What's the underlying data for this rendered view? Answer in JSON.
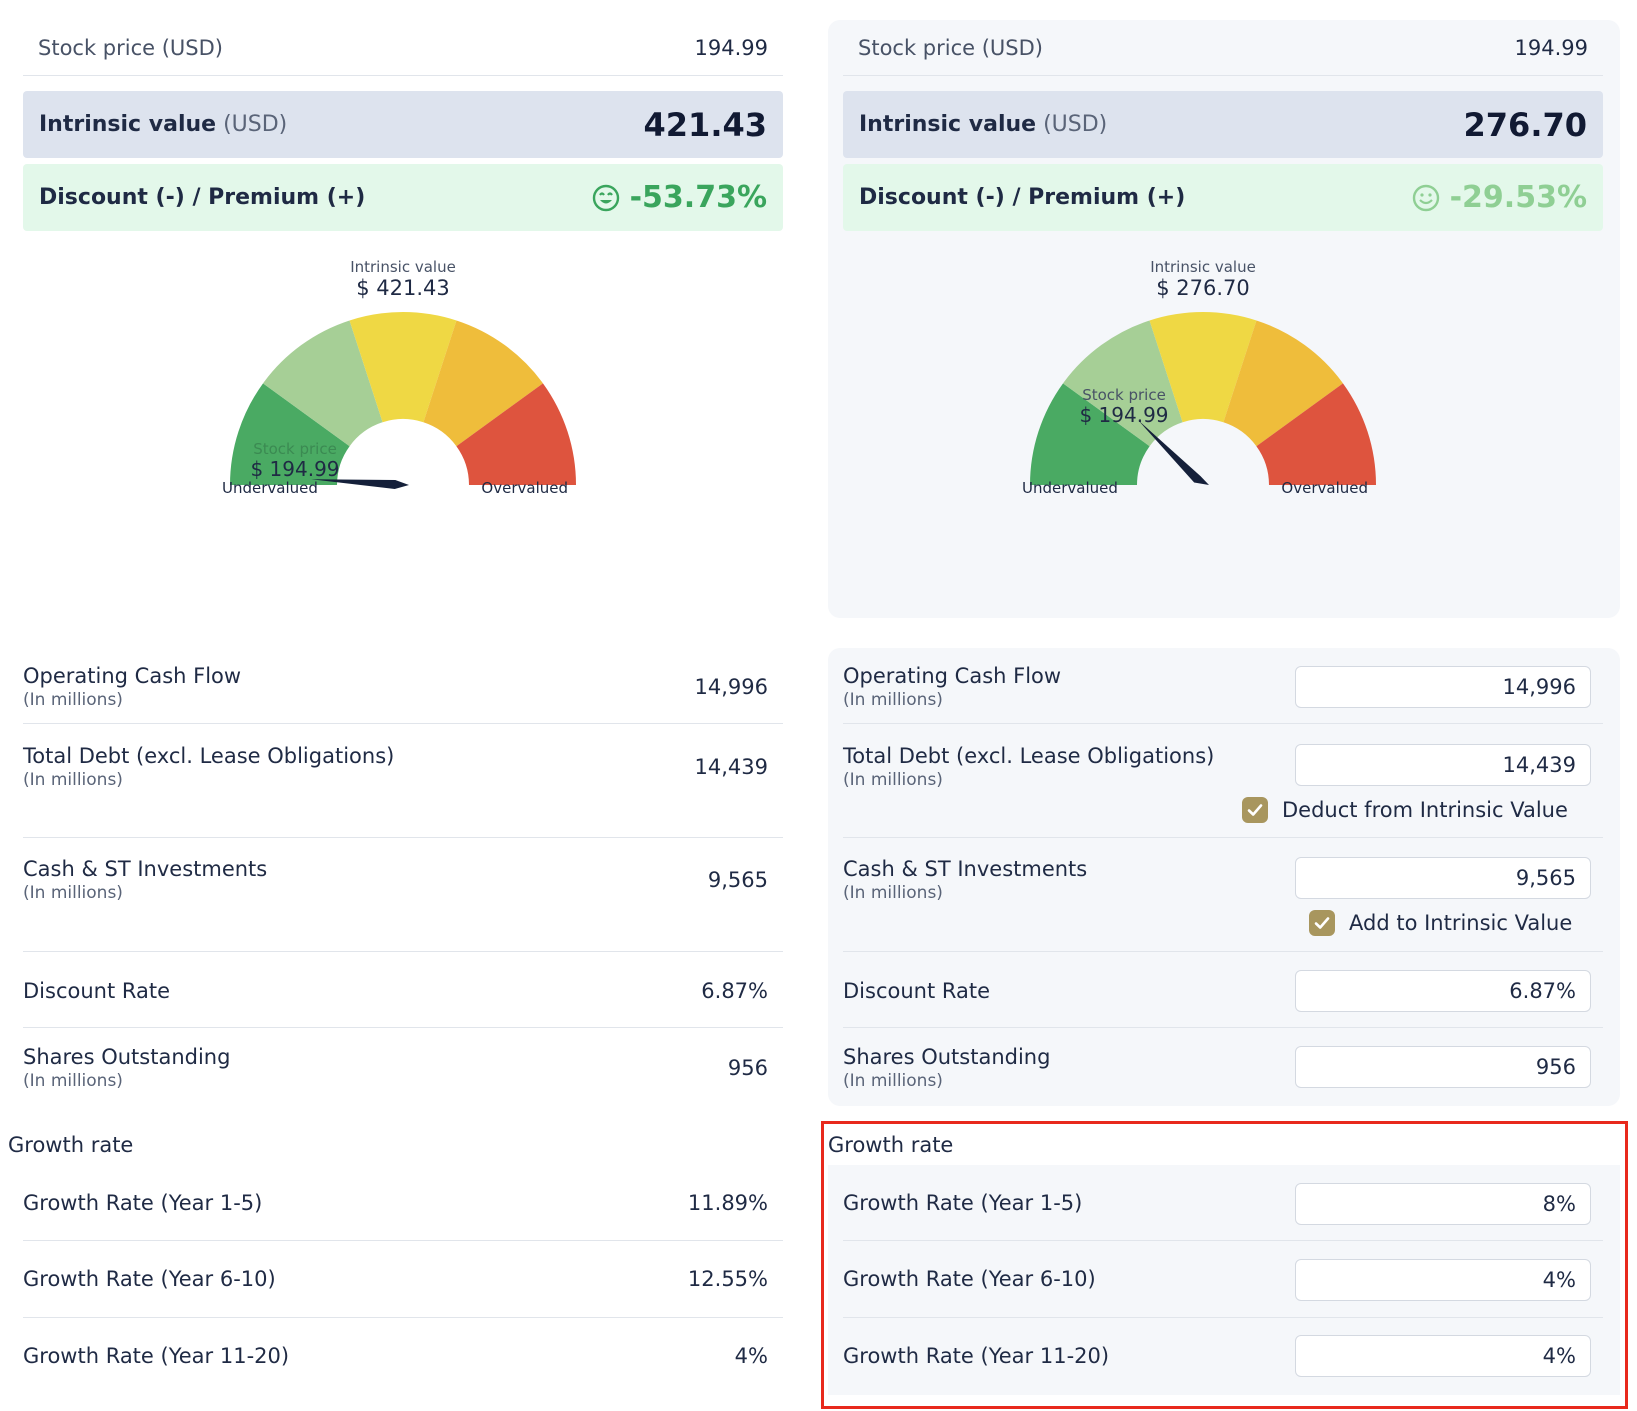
{
  "left": {
    "stock_price_label": "Stock price (USD)",
    "stock_price_value": "194.99",
    "iv_label_bold": "Intrinsic value",
    "iv_label_unit": "(USD)",
    "iv_value": "421.43",
    "discount_label": "Discount (-) / Premium (+)",
    "discount_value": "-53.73%",
    "discount_color": "#3aa55d",
    "gauge": {
      "title": "Intrinsic value",
      "value": "$ 421.43",
      "stock_price_title": "Stock price",
      "stock_price_value": "$ 194.99",
      "left_label": "Undervalued",
      "right_label": "Overvalued",
      "needle_fraction": 0.02
    },
    "fields": [
      {
        "label": "Operating Cash Flow",
        "sub": "(In millions)",
        "value": "14,996"
      },
      {
        "label": "Total Debt (excl. Lease Obligations)",
        "sub": "(In millions)",
        "value": "14,439"
      },
      {
        "label": "Cash & ST Investments",
        "sub": "(In millions)",
        "value": "9,565"
      },
      {
        "label": "Discount Rate",
        "sub": "",
        "value": "6.87%"
      },
      {
        "label": "Shares Outstanding",
        "sub": "(In millions)",
        "value": "956"
      }
    ],
    "growth_title": "Growth rate",
    "growth": [
      {
        "label": "Growth Rate (Year 1-5)",
        "value": "11.89%"
      },
      {
        "label": "Growth Rate (Year 6-10)",
        "value": "12.55%"
      },
      {
        "label": "Growth Rate (Year 11-20)",
        "value": "4%"
      }
    ]
  },
  "right": {
    "stock_price_label": "Stock price (USD)",
    "stock_price_value": "194.99",
    "iv_label_bold": "Intrinsic value",
    "iv_label_unit": "(USD)",
    "iv_value": "276.70",
    "discount_label": "Discount (-) / Premium (+)",
    "discount_value": "-29.53%",
    "discount_color": "#8fcf94",
    "gauge": {
      "title": "Intrinsic value",
      "value": "$ 276.70",
      "stock_price_title": "Stock price",
      "stock_price_value": "$ 194.99",
      "left_label": "Undervalued",
      "right_label": "Overvalued",
      "needle_fraction": 0.25
    },
    "fields": [
      {
        "label": "Operating Cash Flow",
        "sub": "(In millions)",
        "value": "14,996"
      },
      {
        "label": "Total Debt (excl. Lease Obligations)",
        "sub": "(In millions)",
        "value": "14,439",
        "checkbox": "Deduct from Intrinsic Value"
      },
      {
        "label": "Cash & ST Investments",
        "sub": "(In millions)",
        "value": "9,565",
        "checkbox": "Add to Intrinsic Value"
      },
      {
        "label": "Discount Rate",
        "sub": "",
        "value": "6.87%"
      },
      {
        "label": "Shares Outstanding",
        "sub": "(In millions)",
        "value": "956"
      }
    ],
    "growth_title": "Growth rate",
    "growth": [
      {
        "label": "Growth Rate (Year 1-5)",
        "value": "8%"
      },
      {
        "label": "Growth Rate (Year 6-10)",
        "value": "4%"
      },
      {
        "label": "Growth Rate (Year 11-20)",
        "value": "4%"
      }
    ]
  },
  "colors": {
    "gauge_segments": [
      "#4aaa63",
      "#a6cf96",
      "#efd844",
      "#efbd3b",
      "#de543e"
    ],
    "checkbox": "#a8965e",
    "highlight": "#e8291c"
  }
}
